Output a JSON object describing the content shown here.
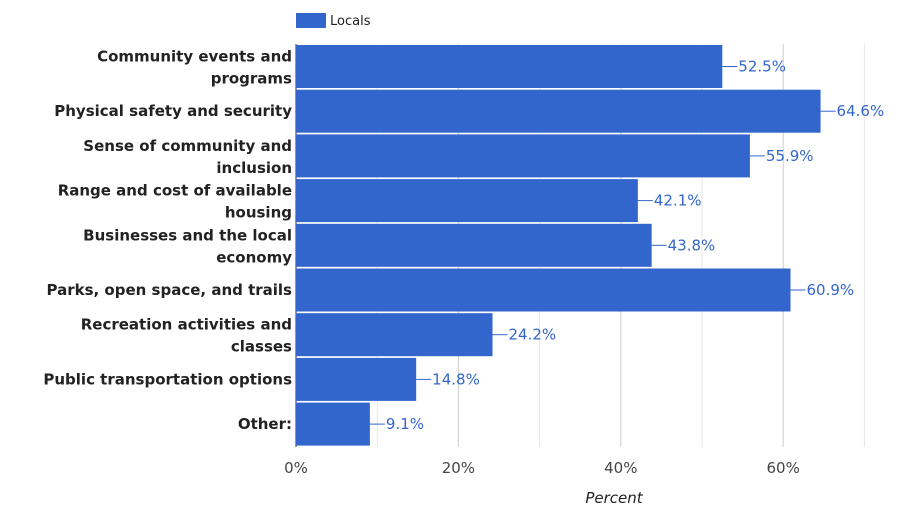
{
  "chart_data": {
    "type": "bar",
    "orientation": "horizontal",
    "categories": [
      [
        "Community events and",
        "programs"
      ],
      [
        "Physical safety and security"
      ],
      [
        "Sense of community and",
        "inclusion"
      ],
      [
        "Range and cost of available",
        "housing"
      ],
      [
        "Businesses and the local",
        "economy"
      ],
      [
        "Parks, open space, and trails"
      ],
      [
        "Recreation activities and",
        "classes"
      ],
      [
        "Public transportation options"
      ],
      [
        "Other:"
      ]
    ],
    "series": [
      {
        "name": "Locals",
        "color": "#3366cc",
        "values": [
          52.5,
          64.6,
          55.9,
          42.1,
          43.8,
          60.9,
          24.2,
          14.8,
          9.1
        ],
        "value_labels": [
          "52.5%",
          "64.6%",
          "55.9%",
          "42.1%",
          "43.8%",
          "60.9%",
          "24.2%",
          "14.8%",
          "9.1%"
        ]
      }
    ],
    "xlabel": "Percent",
    "xlim": [
      0,
      70
    ],
    "x_ticks": [
      0,
      20,
      40,
      60
    ],
    "x_tick_labels": [
      "0%",
      "20%",
      "40%",
      "60%"
    ],
    "minor_gridlines": [
      10,
      30,
      50,
      70
    ],
    "grid": true,
    "legend": "top-left"
  }
}
